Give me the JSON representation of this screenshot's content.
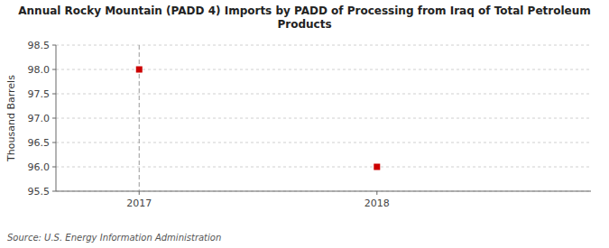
{
  "chart_data": {
    "type": "scatter",
    "title": "Annual Rocky Mountain (PADD 4) Imports by PADD of Processing from Iraq of Total Petroleum\nProducts",
    "ylabel": "Thousand Barrels",
    "source": "Source: U.S. Energy Information Administration",
    "x": [
      2017,
      2018
    ],
    "y": [
      98,
      96
    ],
    "color": "#cc0000",
    "marker": "square",
    "xlim": [
      2016.65,
      2018.9
    ],
    "ylim": [
      95.5,
      98.5
    ],
    "xticks": [
      2017,
      2018
    ],
    "yticks": [
      95.5,
      {
        "value": 96,
        "label": "96.0"
      },
      96.5,
      {
        "value": 97,
        "label": "97.0"
      },
      97.5,
      {
        "value": 98,
        "label": "98.0"
      },
      98.5
    ],
    "vline_x": 2017,
    "grid": true
  }
}
